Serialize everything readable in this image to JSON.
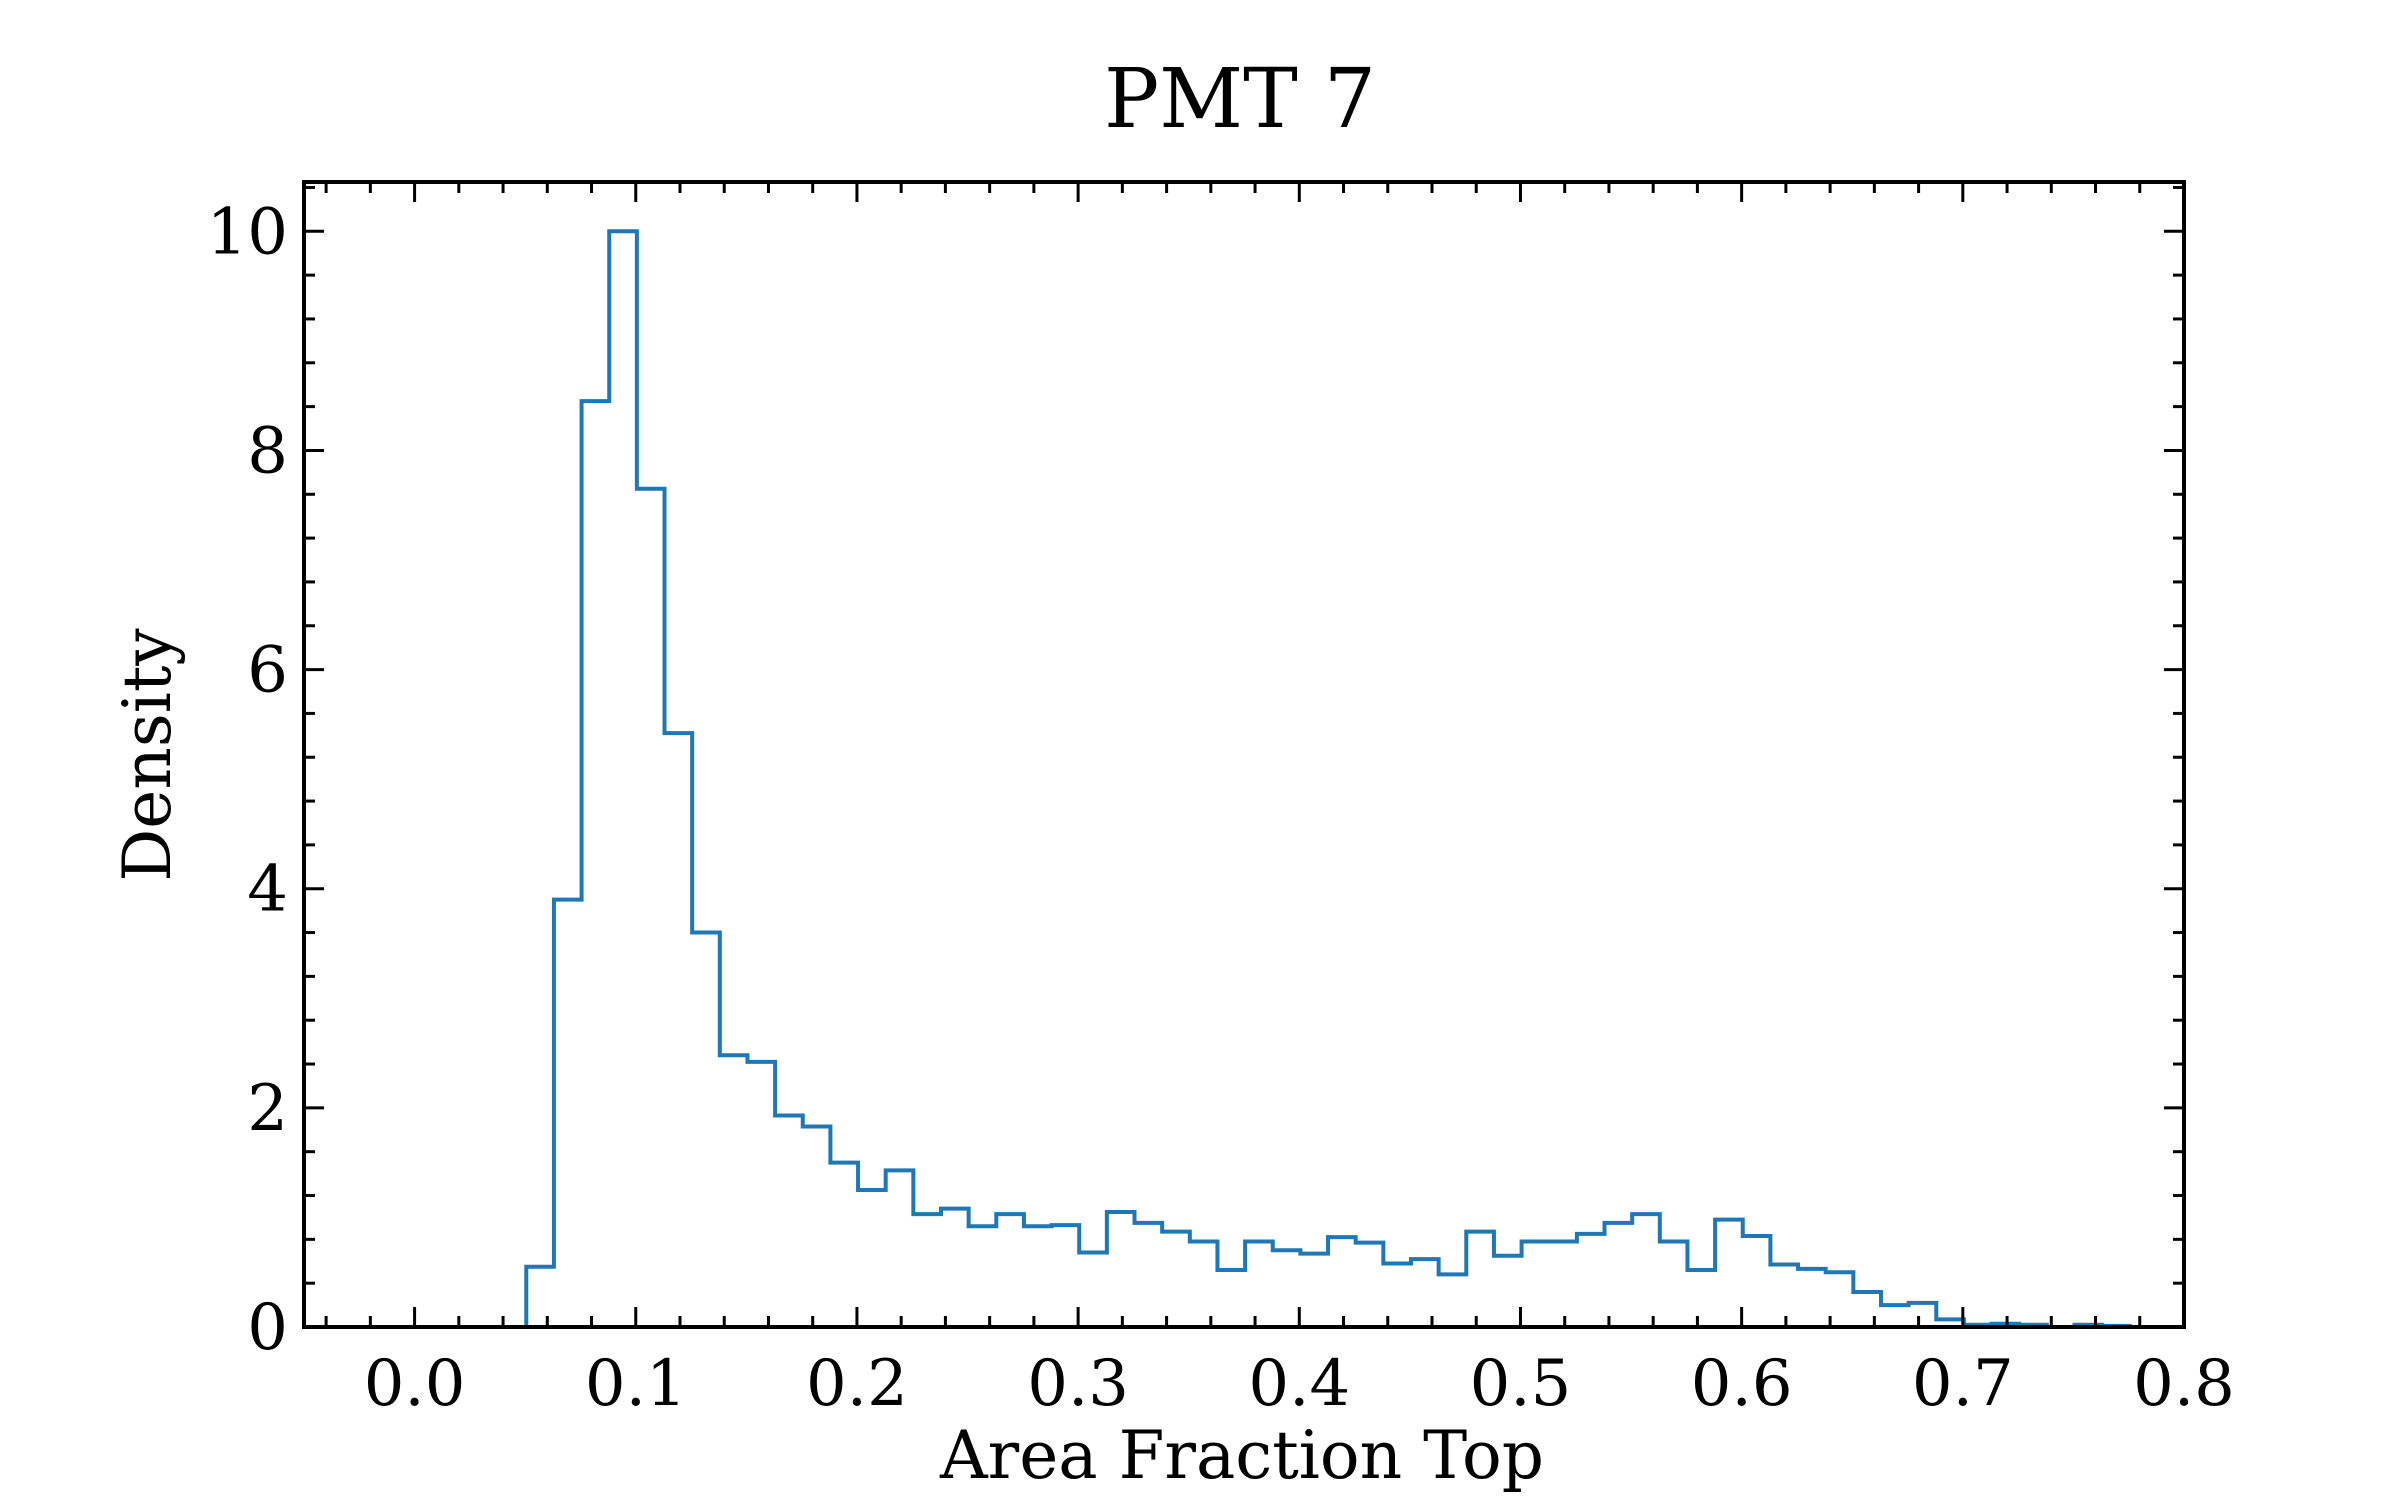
{
  "chart_data": {
    "type": "histogram",
    "title": "PMT 7",
    "xlabel": "Area Fraction Top",
    "ylabel": "Density",
    "xlim": [
      -0.05,
      0.8
    ],
    "ylim": [
      0,
      10.45
    ],
    "xticks": [
      "0.0",
      "0.1",
      "0.2",
      "0.3",
      "0.4",
      "0.5",
      "0.6",
      "0.7",
      "0.8"
    ],
    "xtick_values": [
      0.0,
      0.1,
      0.2,
      0.3,
      0.4,
      0.5,
      0.6,
      0.7,
      0.8
    ],
    "yticks": [
      "0",
      "2",
      "4",
      "6",
      "8",
      "10"
    ],
    "ytick_values": [
      0,
      2,
      4,
      6,
      8,
      10
    ],
    "x_minor_step": 0.02,
    "y_minor_step": 0.4,
    "tick_direction": "in",
    "grid": false,
    "legend": false,
    "color": "#1f77b4",
    "bin_start": 0.0505,
    "bin_width": 0.0125,
    "values": [
      0.55,
      3.9,
      8.45,
      10.0,
      7.65,
      5.42,
      3.6,
      2.48,
      2.42,
      1.93,
      1.83,
      1.5,
      1.25,
      1.43,
      1.03,
      1.08,
      0.92,
      1.03,
      0.92,
      0.93,
      0.68,
      1.05,
      0.95,
      0.87,
      0.78,
      0.52,
      0.78,
      0.7,
      0.67,
      0.82,
      0.77,
      0.58,
      0.62,
      0.48,
      0.87,
      0.65,
      0.78,
      0.78,
      0.85,
      0.95,
      1.03,
      0.78,
      0.52,
      0.98,
      0.83,
      0.57,
      0.53,
      0.5,
      0.32,
      0.2,
      0.22,
      0.07,
      0.02,
      0.03,
      0.02,
      0.0,
      0.02,
      0.01
    ]
  }
}
